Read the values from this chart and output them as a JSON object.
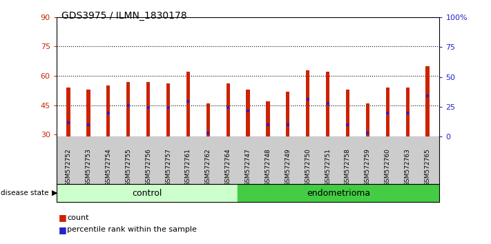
{
  "title": "GDS3975 / ILMN_1830178",
  "samples": [
    "GSM572752",
    "GSM572753",
    "GSM572754",
    "GSM572755",
    "GSM572756",
    "GSM572757",
    "GSM572761",
    "GSM572762",
    "GSM572764",
    "GSM572747",
    "GSM572748",
    "GSM572749",
    "GSM572750",
    "GSM572751",
    "GSM572758",
    "GSM572759",
    "GSM572760",
    "GSM572763",
    "GSM572765"
  ],
  "groups": [
    "control",
    "control",
    "control",
    "control",
    "control",
    "control",
    "control",
    "control",
    "control",
    "endometrioma",
    "endometrioma",
    "endometrioma",
    "endometrioma",
    "endometrioma",
    "endometrioma",
    "endometrioma",
    "endometrioma",
    "endometrioma",
    "endometrioma"
  ],
  "count_values": [
    54,
    53,
    55,
    57,
    57,
    56,
    62,
    46,
    56,
    53,
    47,
    52,
    63,
    62,
    53,
    46,
    54,
    54,
    65
  ],
  "percentile_values": [
    36,
    35,
    41,
    45,
    44,
    44,
    47,
    31,
    44,
    42,
    35,
    35,
    48,
    46,
    35,
    31,
    41,
    41,
    50
  ],
  "bar_bottom": 29,
  "ylim_left": [
    29,
    90
  ],
  "ylim_right": [
    0,
    100
  ],
  "yticks_left": [
    30,
    45,
    60,
    75,
    90
  ],
  "yticks_right": [
    0,
    25,
    50,
    75,
    100
  ],
  "bar_color": "#cc2200",
  "percentile_color": "#2222cc",
  "control_color": "#ccffcc",
  "endometrioma_color": "#44cc44",
  "bg_color": "#cccccc",
  "plot_bg_color": "#ffffff",
  "dotted_lines": [
    45,
    60,
    75
  ],
  "bar_width": 0.18
}
